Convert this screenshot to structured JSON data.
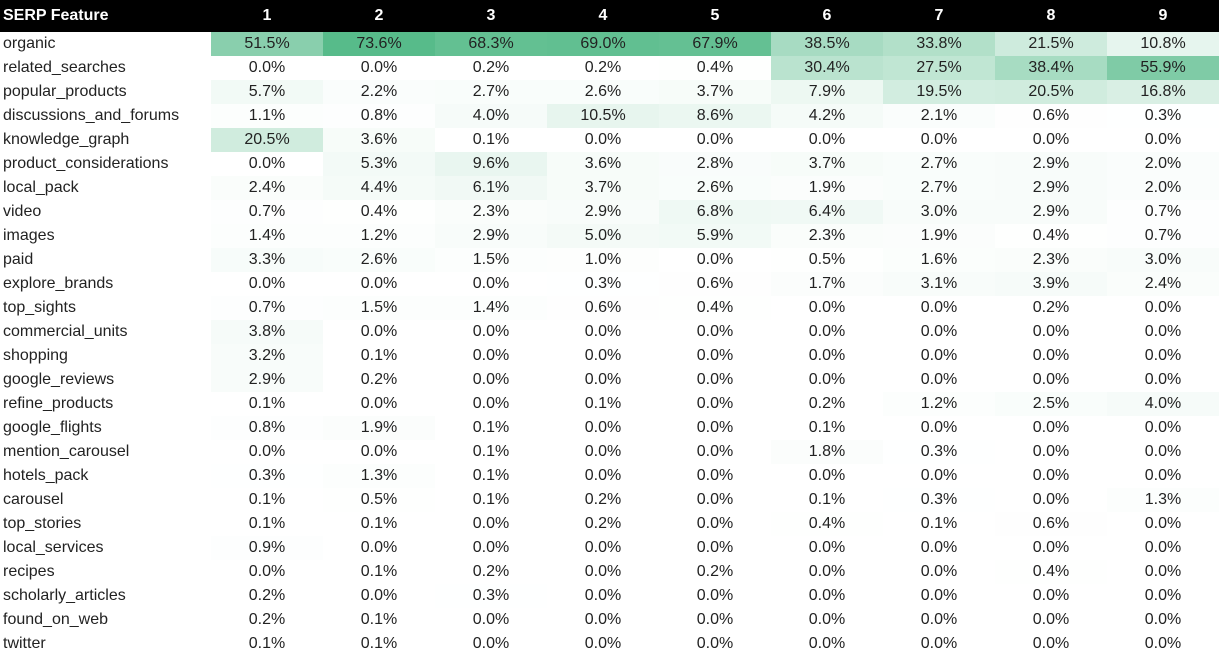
{
  "chart_data": {
    "type": "heatmap",
    "header_label": "SERP Feature",
    "columns": [
      "1",
      "2",
      "3",
      "4",
      "5",
      "6",
      "7",
      "8",
      "9"
    ],
    "value_suffix": "%",
    "colors": {
      "low": "#ffffff",
      "high": "#57bb8a",
      "header_bg": "#000000",
      "header_text": "#ffffff"
    },
    "rows": [
      {
        "label": "organic",
        "values": [
          51.5,
          73.6,
          68.3,
          69.0,
          67.9,
          38.5,
          33.8,
          21.5,
          10.8
        ]
      },
      {
        "label": "related_searches",
        "values": [
          0.0,
          0.0,
          0.2,
          0.2,
          0.4,
          30.4,
          27.5,
          38.4,
          55.9
        ]
      },
      {
        "label": "popular_products",
        "values": [
          5.7,
          2.2,
          2.7,
          2.6,
          3.7,
          7.9,
          19.5,
          20.5,
          16.8
        ]
      },
      {
        "label": "discussions_and_forums",
        "values": [
          1.1,
          0.8,
          4.0,
          10.5,
          8.6,
          4.2,
          2.1,
          0.6,
          0.3
        ]
      },
      {
        "label": "knowledge_graph",
        "values": [
          20.5,
          3.6,
          0.1,
          0.0,
          0.0,
          0.0,
          0.0,
          0.0,
          0.0
        ]
      },
      {
        "label": "product_considerations",
        "values": [
          0.0,
          5.3,
          9.6,
          3.6,
          2.8,
          3.7,
          2.7,
          2.9,
          2.0
        ]
      },
      {
        "label": "local_pack",
        "values": [
          2.4,
          4.4,
          6.1,
          3.7,
          2.6,
          1.9,
          2.7,
          2.9,
          2.0
        ]
      },
      {
        "label": "video",
        "values": [
          0.7,
          0.4,
          2.3,
          2.9,
          6.8,
          6.4,
          3.0,
          2.9,
          0.7
        ]
      },
      {
        "label": "images",
        "values": [
          1.4,
          1.2,
          2.9,
          5.0,
          5.9,
          2.3,
          1.9,
          0.4,
          0.7
        ]
      },
      {
        "label": "paid",
        "values": [
          3.3,
          2.6,
          1.5,
          1.0,
          0.0,
          0.5,
          1.6,
          2.3,
          3.0
        ]
      },
      {
        "label": "explore_brands",
        "values": [
          0.0,
          0.0,
          0.0,
          0.3,
          0.6,
          1.7,
          3.1,
          3.9,
          2.4
        ]
      },
      {
        "label": "top_sights",
        "values": [
          0.7,
          1.5,
          1.4,
          0.6,
          0.4,
          0.0,
          0.0,
          0.2,
          0.0
        ]
      },
      {
        "label": "commercial_units",
        "values": [
          3.8,
          0.0,
          0.0,
          0.0,
          0.0,
          0.0,
          0.0,
          0.0,
          0.0
        ]
      },
      {
        "label": "shopping",
        "values": [
          3.2,
          0.1,
          0.0,
          0.0,
          0.0,
          0.0,
          0.0,
          0.0,
          0.0
        ]
      },
      {
        "label": "google_reviews",
        "values": [
          2.9,
          0.2,
          0.0,
          0.0,
          0.0,
          0.0,
          0.0,
          0.0,
          0.0
        ]
      },
      {
        "label": "refine_products",
        "values": [
          0.1,
          0.0,
          0.0,
          0.1,
          0.0,
          0.2,
          1.2,
          2.5,
          4.0
        ]
      },
      {
        "label": "google_flights",
        "values": [
          0.8,
          1.9,
          0.1,
          0.0,
          0.0,
          0.1,
          0.0,
          0.0,
          0.0
        ]
      },
      {
        "label": "mention_carousel",
        "values": [
          0.0,
          0.0,
          0.1,
          0.0,
          0.0,
          1.8,
          0.3,
          0.0,
          0.0
        ]
      },
      {
        "label": "hotels_pack",
        "values": [
          0.3,
          1.3,
          0.1,
          0.0,
          0.0,
          0.0,
          0.0,
          0.0,
          0.0
        ]
      },
      {
        "label": "carousel",
        "values": [
          0.1,
          0.5,
          0.1,
          0.2,
          0.0,
          0.1,
          0.3,
          0.0,
          1.3
        ]
      },
      {
        "label": "top_stories",
        "values": [
          0.1,
          0.1,
          0.0,
          0.2,
          0.0,
          0.4,
          0.1,
          0.6,
          0.0
        ]
      },
      {
        "label": "local_services",
        "values": [
          0.9,
          0.0,
          0.0,
          0.0,
          0.0,
          0.0,
          0.0,
          0.0,
          0.0
        ]
      },
      {
        "label": "recipes",
        "values": [
          0.0,
          0.1,
          0.2,
          0.0,
          0.2,
          0.0,
          0.0,
          0.4,
          0.0
        ]
      },
      {
        "label": "scholarly_articles",
        "values": [
          0.2,
          0.0,
          0.3,
          0.0,
          0.0,
          0.0,
          0.0,
          0.0,
          0.0
        ]
      },
      {
        "label": "found_on_web",
        "values": [
          0.2,
          0.1,
          0.0,
          0.0,
          0.0,
          0.0,
          0.0,
          0.0,
          0.0
        ]
      },
      {
        "label": "twitter",
        "values": [
          0.1,
          0.1,
          0.0,
          0.0,
          0.0,
          0.0,
          0.0,
          0.0,
          0.0
        ]
      }
    ]
  }
}
